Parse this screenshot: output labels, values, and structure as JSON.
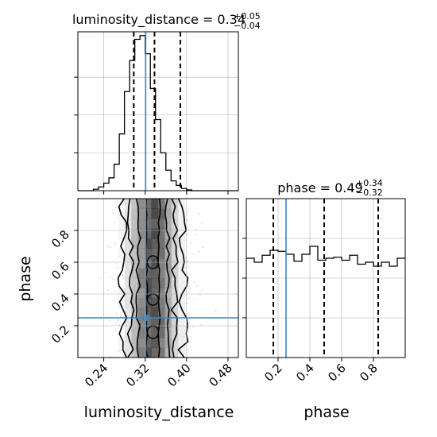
{
  "chart_data": [
    {
      "type": "histogram",
      "panel": "luminosity_distance marginal",
      "title_main": "luminosity_distance = 0.34",
      "title_sup": "+0.05",
      "title_sub": "−0.04",
      "xlim": [
        0.19,
        0.5
      ],
      "x_ticks": [
        0.24,
        0.32,
        0.4,
        0.48
      ],
      "bin_edges": [
        0.19,
        0.2,
        0.21,
        0.22,
        0.23,
        0.24,
        0.25,
        0.26,
        0.27,
        0.28,
        0.29,
        0.3,
        0.31,
        0.32,
        0.33,
        0.34,
        0.35,
        0.36,
        0.37,
        0.38,
        0.39,
        0.4,
        0.41,
        0.42,
        0.43,
        0.44,
        0.45,
        0.46,
        0.47,
        0.48,
        0.49,
        0.5
      ],
      "counts": [
        0,
        0,
        0,
        2,
        5,
        10,
        17,
        35,
        75,
        131,
        172,
        200,
        205,
        181,
        135,
        94,
        50,
        27,
        13,
        7,
        3,
        1,
        0,
        0,
        0,
        0,
        0,
        0,
        0,
        0,
        0
      ],
      "ymax": 210,
      "quantile_lines": [
        0.298,
        0.338,
        0.388
      ],
      "truth": 0.321,
      "grid": true
    },
    {
      "type": "histogram",
      "panel": "phase marginal",
      "title_main": "phase = 0.49",
      "title_sup": "+0.34",
      "title_sub": "−0.32",
      "xlim": [
        0.0,
        1.0
      ],
      "x_ticks": [
        0.2,
        0.4,
        0.6,
        0.8
      ],
      "bin_edges": [
        0.0,
        0.05,
        0.1,
        0.15,
        0.2,
        0.25,
        0.3,
        0.35,
        0.4,
        0.45,
        0.5,
        0.55,
        0.6,
        0.65,
        0.7,
        0.75,
        0.8,
        0.85,
        0.9,
        0.95,
        1.0
      ],
      "counts": [
        100,
        96,
        103,
        108,
        107,
        104,
        97,
        104,
        112,
        98,
        100,
        101,
        98,
        103,
        94,
        96,
        92,
        96,
        92,
        100
      ],
      "ymax": 160,
      "quantile_lines": [
        0.17,
        0.49,
        0.83
      ],
      "truth": 0.25,
      "grid": true
    },
    {
      "type": "scatter_density_contour",
      "panel": "luminosity_distance vs phase",
      "xlabel": "luminosity_distance",
      "ylabel": "phase",
      "xlim": [
        0.19,
        0.5
      ],
      "ylim": [
        0.0,
        1.0
      ],
      "x_ticks": [
        0.24,
        0.32,
        0.4,
        0.48
      ],
      "y_ticks": [
        0.2,
        0.4,
        0.6,
        0.8
      ],
      "truth": {
        "x": 0.321,
        "y": 0.25
      },
      "density_center_x": 0.335,
      "density_sigma_x": 0.025,
      "contours_x_halfwidth": [
        0.012,
        0.028,
        0.042,
        0.058
      ],
      "grid": true
    }
  ],
  "colors": {
    "truth": "#4682b4",
    "hist": "#000000",
    "grid": "#b0b0b0",
    "points": "#aaaaaa"
  }
}
